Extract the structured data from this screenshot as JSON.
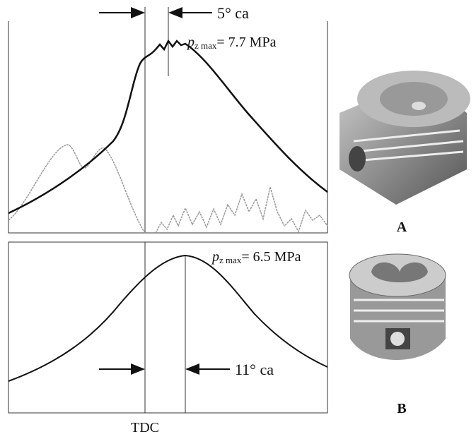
{
  "top_panel": {
    "angle_label": "5° ca",
    "peak_label": {
      "symbol": "p",
      "subscript": "z max",
      "value": "= 7.7 MPa"
    }
  },
  "bottom_panel": {
    "angle_label": "11° ca",
    "peak_label": {
      "symbol": "p",
      "subscript": "z max",
      "value": "= 6.5 MPa"
    }
  },
  "x_label": "TDC",
  "pistons": [
    {
      "label": "A"
    },
    {
      "label": "B"
    }
  ]
}
